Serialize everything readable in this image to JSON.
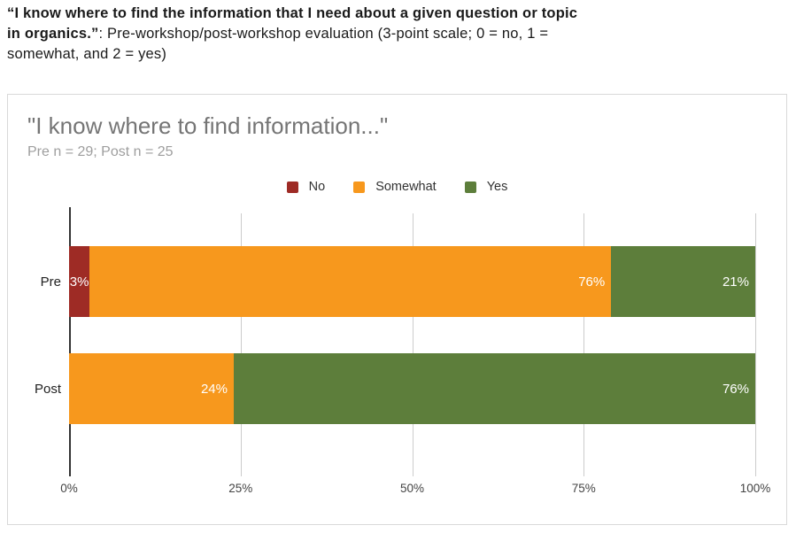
{
  "page_header": {
    "line1_bold": "“I know where to find the information that I need about a given question or topic",
    "line2_bold": "in organics.”",
    "line2_regular": ": Pre-workshop/post-workshop evaluation (3-point scale; 0 = no, 1 =",
    "line3_regular": "somewhat, and 2 = yes)"
  },
  "colors": {
    "no": "#9e2b25",
    "somewhat": "#f7981d",
    "yes": "#5d7e3b",
    "card_border": "#d9d9d9",
    "title_gray": "#757575",
    "subtitle_gray": "#9e9e9e",
    "gridline": "#cccccc"
  },
  "chart_data": {
    "type": "bar",
    "stacked": true,
    "orientation": "horizontal",
    "title": "\"I know where to find information...\"",
    "subtitle": "Pre n = 29; Post n = 25",
    "categories": [
      "Pre",
      "Post"
    ],
    "series": [
      {
        "name": "No",
        "color": "#9e2b25",
        "values": [
          3,
          0
        ]
      },
      {
        "name": "Somewhat",
        "color": "#f7981d",
        "values": [
          76,
          24
        ]
      },
      {
        "name": "Yes",
        "color": "#5d7e3b",
        "values": [
          21,
          76
        ]
      }
    ],
    "xlim": [
      0,
      100
    ],
    "x_ticks": {
      "t0": "0%",
      "t25": "25%",
      "t50": "50%",
      "t75": "75%",
      "t100": "100%"
    },
    "grid": "vertical",
    "legend_position": "top-center",
    "legend": [
      {
        "label": "No",
        "color": "#9e2b25"
      },
      {
        "label": "Somewhat",
        "color": "#f7981d"
      },
      {
        "label": "Yes",
        "color": "#5d7e3b"
      }
    ],
    "rows": [
      {
        "label": "Pre",
        "segments": {
          "no": {
            "series": "No",
            "pct": 3,
            "label": "3%",
            "color": "#9e2b25"
          },
          "somewhat": {
            "series": "Somewhat",
            "pct": 76,
            "label": "76%",
            "color": "#f7981d"
          },
          "yes": {
            "series": "Yes",
            "pct": 21,
            "label": "21%",
            "color": "#5d7e3b"
          }
        }
      },
      {
        "label": "Post",
        "segments": {
          "somewhat": {
            "series": "Somewhat",
            "pct": 24,
            "label": "24%",
            "color": "#f7981d"
          },
          "yes": {
            "series": "Yes",
            "pct": 76,
            "label": "76%",
            "color": "#5d7e3b"
          }
        }
      }
    ]
  }
}
